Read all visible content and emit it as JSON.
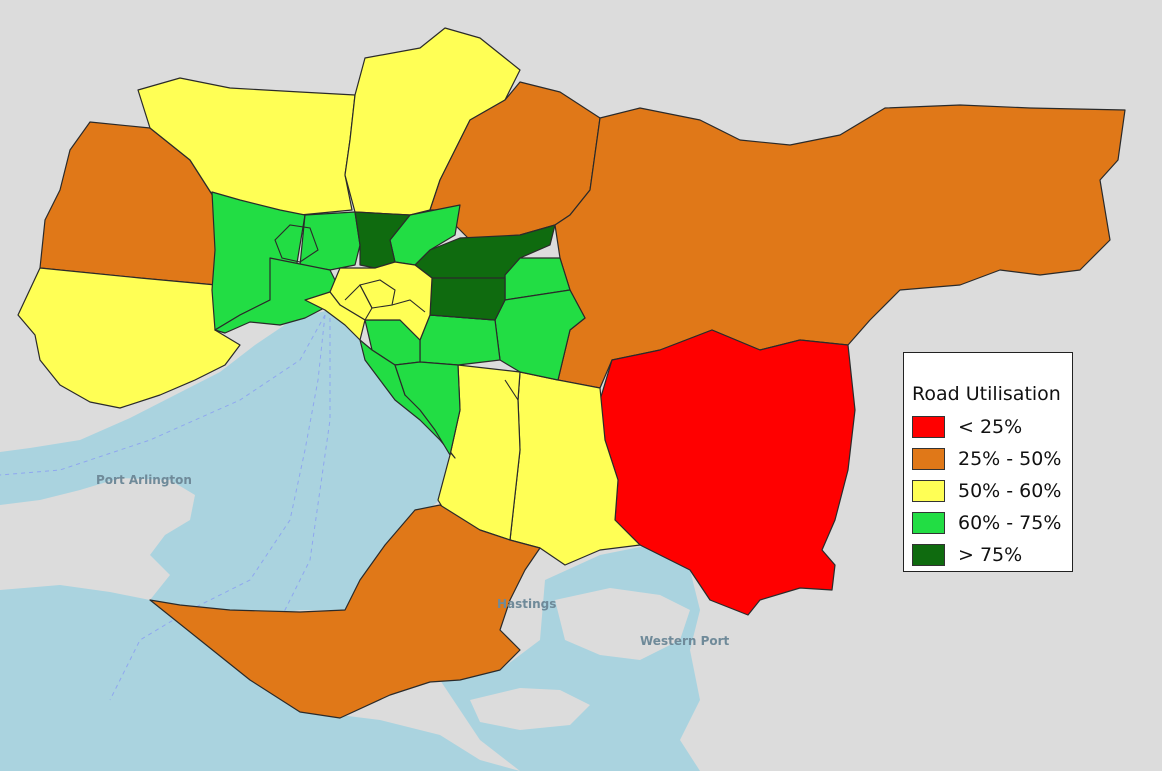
{
  "colors": {
    "background_land": "#dcdcdc",
    "water": "#aad3df",
    "lt25": "#ff0000",
    "25to50": "#e07818",
    "50to60": "#ffff55",
    "60to75": "#22dd44",
    "gt75": "#0f6b0f"
  },
  "legend": {
    "title": "Road Utilisation",
    "items": [
      {
        "label": "< 25%",
        "color": "#ff0000"
      },
      {
        "label": "25% - 50%",
        "color": "#e07818"
      },
      {
        "label": "50% - 60%",
        "color": "#ffff55"
      },
      {
        "label": "60% - 75%",
        "color": "#22dd44"
      },
      {
        "label": "> 75%",
        "color": "#0f6b0f"
      }
    ]
  },
  "base_map_labels": [
    "Port Arlington",
    "Hastings",
    "Western Port"
  ]
}
